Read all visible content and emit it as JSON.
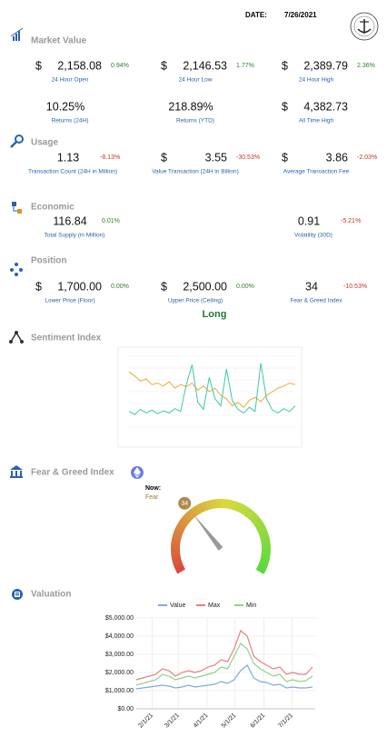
{
  "header": {
    "date_label": "DATE:",
    "date": "7/26/2021"
  },
  "market_value": {
    "title": "Market Value",
    "rows": [
      [
        {
          "currency": "$",
          "value": "2,158.08",
          "change": "0.94%",
          "label": "24 Hour Open"
        },
        {
          "currency": "$",
          "value": "2,146.53",
          "change": "1.77%",
          "label": "24 Hour Low"
        },
        {
          "currency": "$",
          "value": "2,389.79",
          "change": "2.36%",
          "label": "24 Hour High"
        }
      ],
      [
        {
          "value": "10.25%",
          "value_color": "#2e8b3a",
          "label": "Returns (24H)"
        },
        {
          "value": "218.89%",
          "value_color": "#2e8b3a",
          "label": "Returns (YTD)"
        },
        {
          "currency": "$",
          "value": "4,382.73",
          "label": "All Time High"
        }
      ]
    ]
  },
  "usage": {
    "title": "Usage",
    "rows": [
      [
        {
          "value": "1.13",
          "change": "-8.13%",
          "label": "Transaction Count (24H in Million)"
        },
        {
          "currency": "$",
          "value": "3.55",
          "change": "-30.53%",
          "label": "Value Transaction (24H in Billion)"
        },
        {
          "currency": "$",
          "value": "3.86",
          "change": "-2.03%",
          "label": "Average Transaction Fee"
        }
      ]
    ]
  },
  "economic": {
    "title": "Economic",
    "rows": [
      [
        {
          "value": "116.84",
          "change": "0.01%",
          "label": "Total Supply (in Million)",
          "label_color": "#5a9a4a"
        },
        {
          "value": "0.91",
          "change": "-5.21%",
          "label": "Volatility (30D)",
          "label_color": "#5a9a4a"
        }
      ]
    ]
  },
  "position": {
    "title": "Position",
    "rows": [
      [
        {
          "currency": "$",
          "value": "1,700.00",
          "change": "0.00%",
          "label": "Lower Price (Floor)"
        },
        {
          "currency": "$",
          "value": "2,500.00",
          "change": "0.00%",
          "label": "Upper Price (Ceiling)"
        },
        {
          "value": "34",
          "change": "-10.53%",
          "label": "Fear & Greed Index"
        }
      ]
    ],
    "signal": "Long"
  },
  "sentiment": {
    "title": "Sentiment Index",
    "chart": {
      "type": "line",
      "ylim": [
        0,
        100
      ],
      "series": [
        {
          "color": "#f0a830",
          "values": [
            78,
            72,
            65,
            68,
            60,
            62,
            58,
            64,
            55,
            60,
            57,
            62,
            52,
            58,
            50,
            55,
            45,
            40,
            30,
            35,
            28,
            38,
            42,
            36,
            45,
            50,
            55,
            58,
            62,
            60
          ]
        },
        {
          "color": "#3cc8a8",
          "values": [
            22,
            18,
            25,
            20,
            24,
            19,
            23,
            20,
            26,
            22,
            60,
            88,
            35,
            25,
            70,
            40,
            30,
            82,
            38,
            25,
            20,
            28,
            22,
            90,
            40,
            24,
            20,
            26,
            22,
            30
          ]
        }
      ]
    }
  },
  "fear_greed": {
    "title": "Fear & Greed Index",
    "now_label": "Now:",
    "status": "Fear",
    "value": 34,
    "min": 0,
    "max": 100
  },
  "valuation": {
    "title": "Valuation",
    "chart": {
      "type": "line",
      "x": [
        "1/15/21",
        "1/22/21",
        "1/29/21",
        "2/5/21",
        "2/12/21",
        "2/19/21",
        "2/26/21",
        "3/5/21",
        "3/12/21",
        "3/19/21",
        "3/26/21",
        "4/2/21",
        "4/9/21",
        "4/16/21",
        "4/23/21",
        "4/30/21",
        "5/7/21",
        "5/14/21",
        "5/21/21",
        "5/28/21",
        "6/4/21",
        "6/11/21",
        "6/18/21",
        "6/25/21",
        "7/2/21",
        "7/9/21",
        "7/16/21",
        "7/23/21"
      ],
      "series": [
        {
          "name": "Value",
          "color": "#7fa9e0",
          "values": [
            1100,
            1150,
            1200,
            1250,
            1300,
            1250,
            1150,
            1200,
            1300,
            1200,
            1250,
            1300,
            1350,
            1500,
            1400,
            1600,
            2100,
            2400,
            1700,
            1500,
            1450,
            1300,
            1350,
            1150,
            1200,
            1150,
            1150,
            1200
          ]
        },
        {
          "name": "Max",
          "color": "#e87f7f",
          "values": [
            1600,
            1700,
            1800,
            1900,
            2200,
            2100,
            1800,
            2000,
            2100,
            2000,
            2100,
            2300,
            2400,
            2700,
            2600,
            3300,
            4300,
            4000,
            2900,
            2600,
            2400,
            2200,
            2300,
            1900,
            2000,
            1900,
            1900,
            2300
          ]
        },
        {
          "name": "Min",
          "color": "#8fd08f",
          "values": [
            1300,
            1400,
            1500,
            1600,
            1900,
            1800,
            1600,
            1700,
            1800,
            1700,
            1800,
            1900,
            2000,
            2300,
            2200,
            2900,
            3600,
            3300,
            2500,
            2200,
            2000,
            1800,
            1900,
            1500,
            1600,
            1500,
            1550,
            1800
          ]
        }
      ],
      "xlim": [
        "1/15/21",
        "7/26/21"
      ],
      "xticks": [
        "2/1/21",
        "3/1/21",
        "4/1/21",
        "5/1/21",
        "6/1/21",
        "7/1/21"
      ],
      "ylim": [
        0,
        5000
      ],
      "yticks": [
        {
          "value": 0,
          "label": "$0.00"
        },
        {
          "value": 1000,
          "label": "$1,000.00"
        },
        {
          "value": 2000,
          "label": "$2,000.00"
        },
        {
          "value": 3000,
          "label": "$3,000.00"
        },
        {
          "value": 4000,
          "label": "$4,000.00"
        },
        {
          "value": 5000,
          "label": "$5,000.00"
        }
      ],
      "grid": true
    }
  }
}
